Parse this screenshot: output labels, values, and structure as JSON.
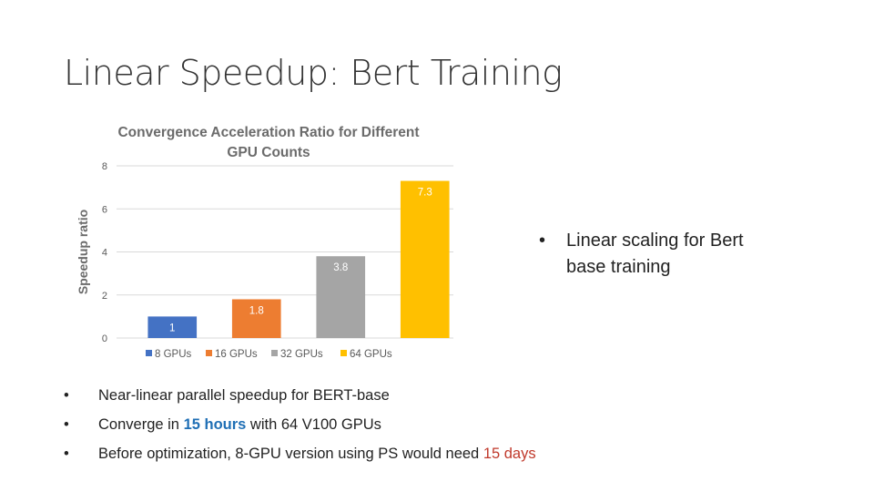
{
  "slide": {
    "title": "Linear Speedup: Bert Training",
    "right_bullet": "Linear scaling for Bert base training",
    "bullets": [
      {
        "prefix": "Near-linear parallel speedup for BERT-base"
      },
      {
        "prefix": "Converge in ",
        "highlight": "15 hours",
        "suffix": " with 64 V100 GPUs"
      },
      {
        "prefix": "Before optimization, 8-GPU version using PS would need ",
        "highlight": "15 days",
        "suffix": ""
      }
    ],
    "bullet_symbol": "•"
  },
  "chart_data": {
    "type": "bar",
    "title": "Convergence Acceleration Ratio for Different GPU Counts",
    "ylabel": "Speedup ratio",
    "xlabel": "",
    "ylim": [
      0,
      8
    ],
    "yticks": [
      0,
      2,
      4,
      6,
      8
    ],
    "categories": [
      "8 GPUs",
      "16 GPUs",
      "32 GPUs",
      "64 GPUs"
    ],
    "values": [
      1,
      1.8,
      3.8,
      7.3
    ],
    "data_labels": [
      "1",
      "1.8",
      "3.8",
      "7.3"
    ],
    "colors": [
      "#4472c4",
      "#ed7d31",
      "#a5a5a5",
      "#ffc000"
    ],
    "grid": true,
    "legend": "bottom"
  }
}
